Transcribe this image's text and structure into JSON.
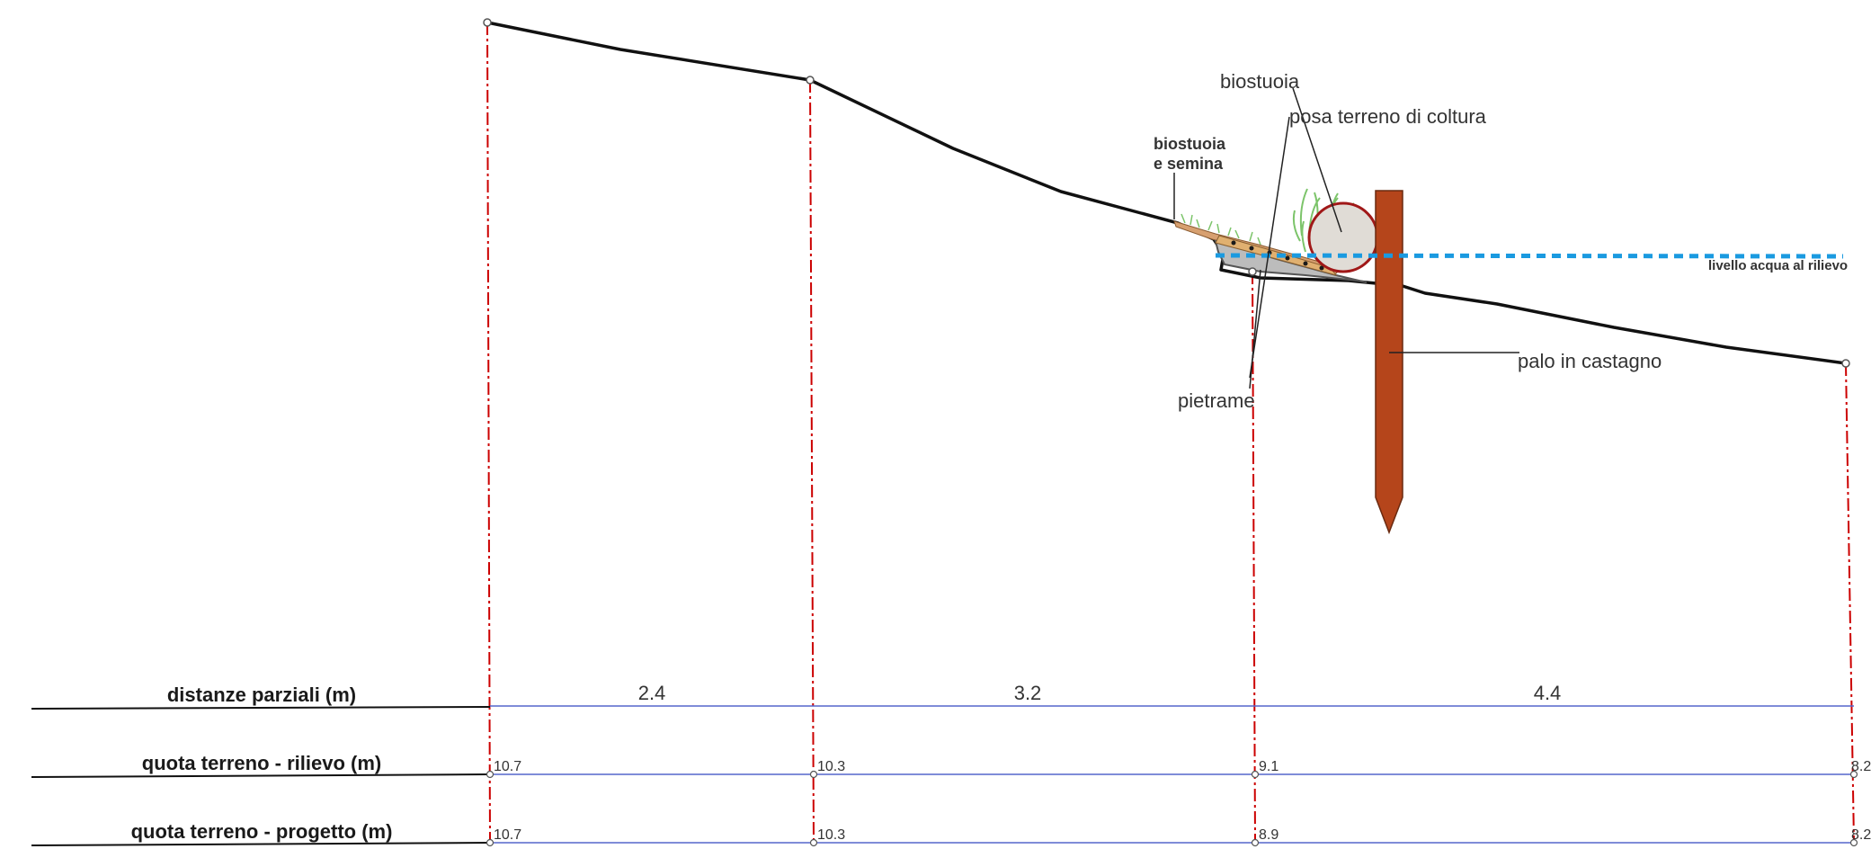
{
  "labels": {
    "biostuoia": "biostuoia",
    "posa_terreno": "posa terreno di coltura",
    "biostuoia_semina_1": "biostuoia",
    "biostuoia_semina_2": "e semina",
    "livello_acqua": "livello acqua al rilievo",
    "palo": "palo in castagno",
    "pietrame": "pietrame"
  },
  "table": {
    "rows": [
      {
        "title": "distanze parziali (m)"
      },
      {
        "title": "quota terreno - rilievo (m)"
      },
      {
        "title": "quota terreno - progetto (m)"
      }
    ],
    "distances": [
      "2.4",
      "3.2",
      "4.4"
    ],
    "rilievo": [
      "10.7",
      "10.3",
      "9.1",
      "8.2"
    ],
    "progetto": [
      "10.7",
      "10.3",
      "8.9",
      "8.2"
    ]
  },
  "colors": {
    "ground": "#111111",
    "section_line": "#cc0000",
    "table_line": "#5566cc",
    "water": "#1a9ae0",
    "pole": "#b5451b",
    "log_fill": "#e0dcd6",
    "log_stroke": "#a01818"
  }
}
